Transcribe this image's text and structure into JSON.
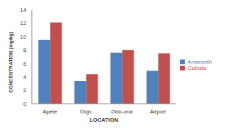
{
  "chart_data": {
    "type": "bar",
    "categories": [
      "Apete",
      "Oojo",
      "Odo-ona",
      "Airport"
    ],
    "series": [
      {
        "name": "Amaranth",
        "color": "#4f81bd",
        "values": [
          9.5,
          3.4,
          7.6,
          4.9
        ]
      },
      {
        "name": "Celosia",
        "color": "#c0504d",
        "values": [
          12.1,
          4.4,
          8.0,
          7.5
        ]
      }
    ],
    "x_label": "LOCATION",
    "y_label": "CONCENTRATION (mg/kg)",
    "ylim": [
      0,
      14
    ],
    "yticks": [
      0,
      2,
      4,
      6,
      8,
      10,
      12,
      14
    ],
    "grid": false,
    "legend": "right"
  }
}
